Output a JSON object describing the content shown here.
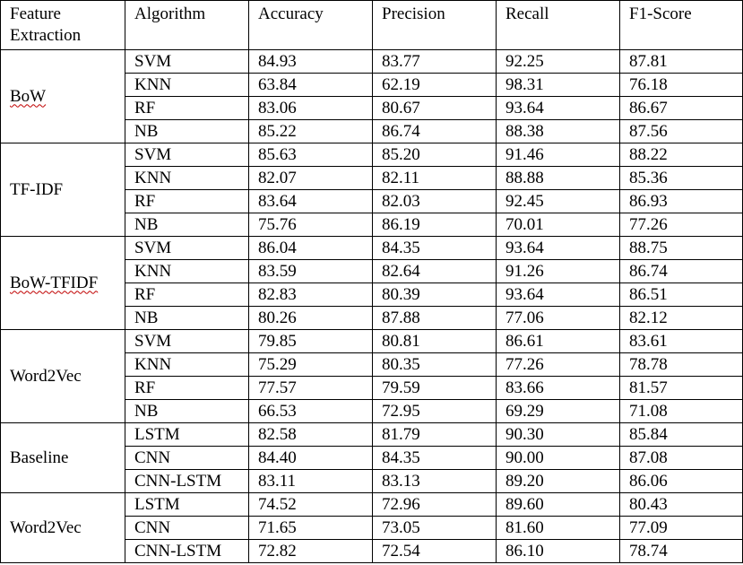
{
  "headers": [
    "Feature Extraction",
    "Algorithm",
    "Accuracy",
    "Precision",
    "Recall",
    "F1-Score"
  ],
  "groups": [
    {
      "feature": "BoW",
      "spellcheck_flag": true,
      "rows": [
        {
          "algorithm": "SVM",
          "accuracy": "84.93",
          "precision": "83.77",
          "recall": "92.25",
          "f1": "87.81"
        },
        {
          "algorithm": "KNN",
          "accuracy": "63.84",
          "precision": "62.19",
          "recall": "98.31",
          "f1": "76.18",
          "bold": [
            "recall"
          ]
        },
        {
          "algorithm": "RF",
          "accuracy": "83.06",
          "precision": "80.67",
          "recall": "93.64",
          "f1": "86.67"
        },
        {
          "algorithm": "NB",
          "accuracy": "85.22",
          "precision": "86.74",
          "recall": "88.38",
          "f1": "87.56"
        }
      ]
    },
    {
      "feature": "TF-IDF",
      "spellcheck_flag": false,
      "rows": [
        {
          "algorithm": "SVM",
          "accuracy": "85.63",
          "precision": "85.20",
          "recall": "91.46",
          "f1": "88.22"
        },
        {
          "algorithm": "KNN",
          "accuracy": "82.07",
          "precision": "82.11",
          "recall": "88.88",
          "f1": "85.36"
        },
        {
          "algorithm": "RF",
          "accuracy": "83.64",
          "precision": "82.03",
          "recall": "92.45",
          "f1": "86.93"
        },
        {
          "algorithm": "NB",
          "accuracy": "75.76",
          "precision": "86.19",
          "recall": "70.01",
          "f1": "77.26"
        }
      ]
    },
    {
      "feature": "BoW-TFIDF",
      "spellcheck_flag": true,
      "rows": [
        {
          "algorithm": "SVM",
          "accuracy": "86.04",
          "precision": "84.35",
          "recall": "93.64",
          "f1": "88.75",
          "bold": [
            "accuracy",
            "f1"
          ]
        },
        {
          "algorithm": "KNN",
          "accuracy": "83.59",
          "precision": "82.64",
          "recall": "91.26",
          "f1": "86.74"
        },
        {
          "algorithm": "RF",
          "accuracy": "82.83",
          "precision": "80.39",
          "recall": "93.64",
          "f1": "86.51"
        },
        {
          "algorithm": "NB",
          "accuracy": "80.26",
          "precision": "87.88",
          "recall": "77.06",
          "f1": "82.12",
          "bold": [
            "precision"
          ]
        }
      ]
    },
    {
      "feature": "Word2Vec",
      "spellcheck_flag": false,
      "rows": [
        {
          "algorithm": "SVM",
          "accuracy": "79.85",
          "precision": "80.81",
          "recall": "86.61",
          "f1": "83.61"
        },
        {
          "algorithm": "KNN",
          "accuracy": "75.29",
          "precision": "80.35",
          "recall": "77.26",
          "f1": "78.78"
        },
        {
          "algorithm": "RF",
          "accuracy": "77.57",
          "precision": "79.59",
          "recall": "83.66",
          "f1": "81.57"
        },
        {
          "algorithm": "NB",
          "accuracy": "66.53",
          "precision": "72.95",
          "recall": "69.29",
          "f1": "71.08"
        }
      ]
    },
    {
      "feature": "Baseline",
      "spellcheck_flag": false,
      "rows": [
        {
          "algorithm": "LSTM",
          "accuracy": "82.58",
          "precision": "81.79",
          "recall": "90.30",
          "f1": "85.84"
        },
        {
          "algorithm": "CNN",
          "accuracy": "84.40",
          "precision": "84.35",
          "recall": "90.00",
          "f1": "87.08"
        },
        {
          "algorithm": "CNN-LSTM",
          "accuracy": "83.11",
          "precision": "83.13",
          "recall": "89.20",
          "f1": "86.06"
        }
      ]
    },
    {
      "feature": "Word2Vec",
      "spellcheck_flag": false,
      "rows": [
        {
          "algorithm": "LSTM",
          "accuracy": "74.52",
          "precision": "72.96",
          "recall": "89.60",
          "f1": "80.43"
        },
        {
          "algorithm": "CNN",
          "accuracy": "71.65",
          "precision": "73.05",
          "recall": "81.60",
          "f1": "77.09"
        },
        {
          "algorithm": "CNN-LSTM",
          "accuracy": "72.82",
          "precision": "72.54",
          "recall": "86.10",
          "f1": "78.74"
        }
      ]
    }
  ]
}
